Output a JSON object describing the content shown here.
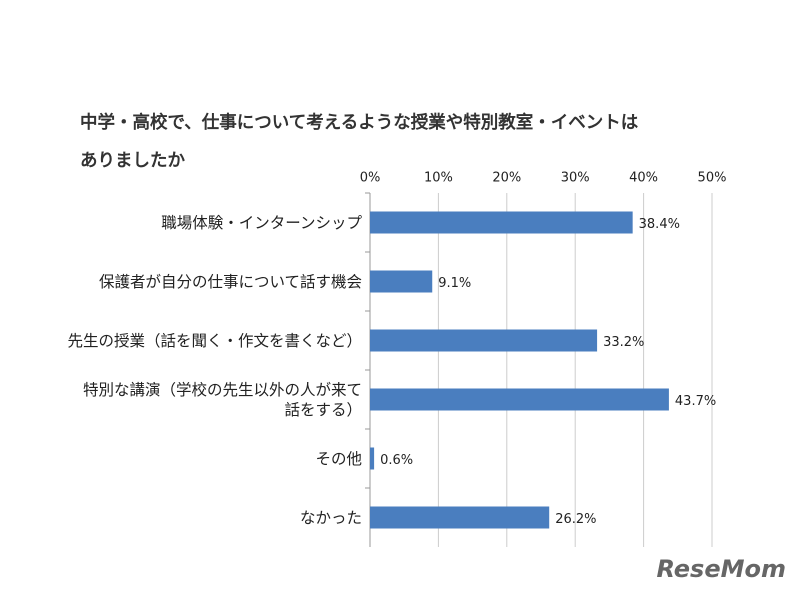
{
  "chart_data": {
    "type": "bar",
    "orientation": "horizontal",
    "title": "中学・高校で、仕事について考えるような授業や特別教室・イベントはありましたか",
    "categories": [
      "職場体験・インターンシップ",
      "保護者が自分の仕事について話す機会",
      "先生の授業（話を聞く・作文を書くなど）",
      "特別な講演（学校の先生以外の人が来て話をする）",
      "その他",
      "なかった"
    ],
    "values": [
      38.4,
      9.1,
      33.2,
      43.7,
      0.6,
      26.2
    ],
    "value_labels": [
      "38.4%",
      "9.1%",
      "33.2%",
      "43.7%",
      "0.6%",
      "26.2%"
    ],
    "color": "#4a7ebf",
    "xlim": [
      0,
      50
    ],
    "xticks": [
      {
        "value": 0,
        "label": "0%"
      },
      {
        "value": 10,
        "label": "10%"
      },
      {
        "value": 20,
        "label": "20%"
      },
      {
        "value": 30,
        "label": "30%"
      },
      {
        "value": 40,
        "label": "40%"
      },
      {
        "value": 50,
        "label": "50%"
      }
    ],
    "grid": true
  },
  "watermark": "ReseMom"
}
